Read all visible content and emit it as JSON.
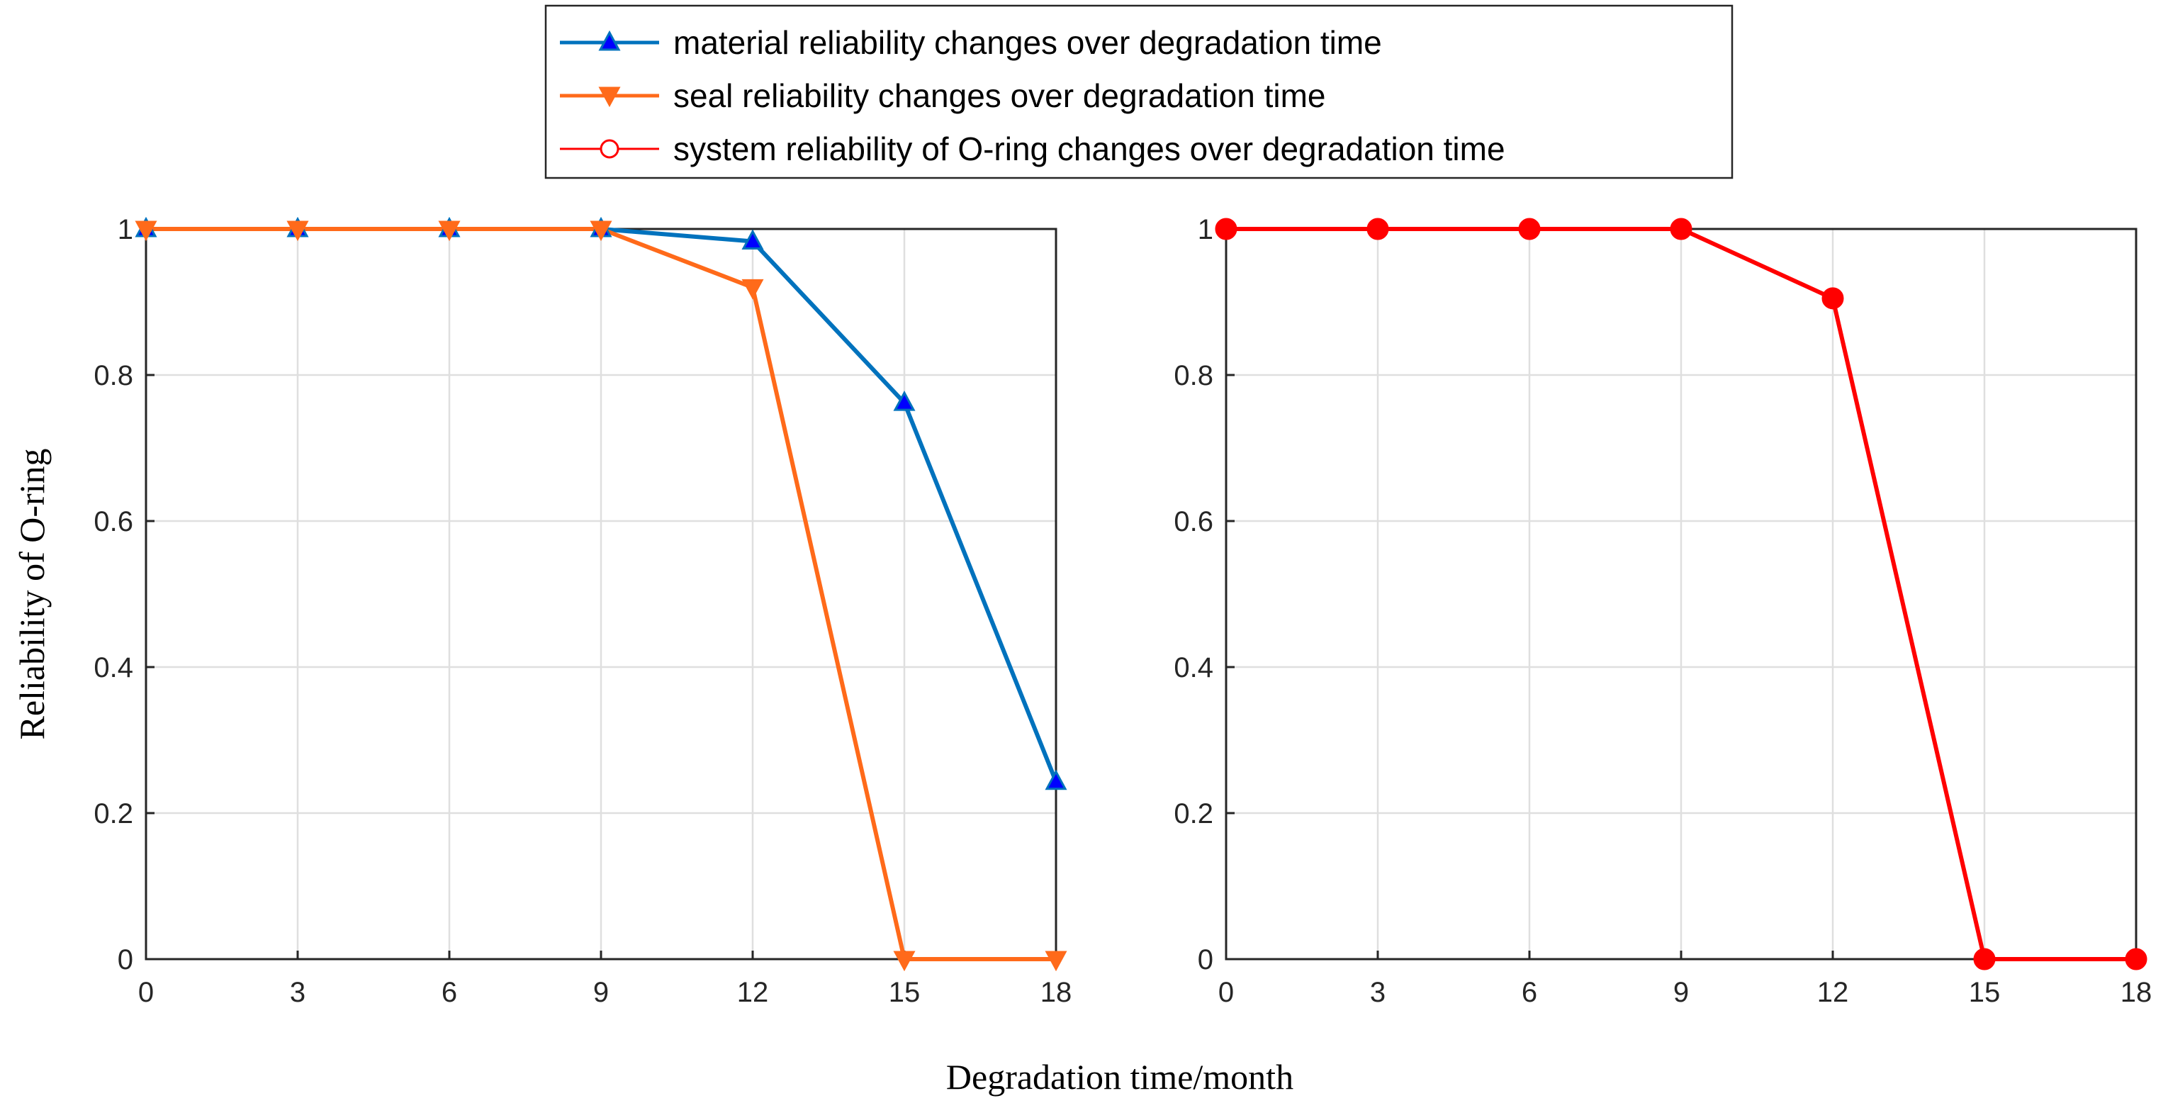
{
  "chart_data": [
    {
      "type": "line",
      "panel": "left",
      "x": [
        0,
        3,
        6,
        9,
        12,
        15,
        18
      ],
      "xticks": [
        "0",
        "3",
        "6",
        "9",
        "12",
        "15",
        "18"
      ],
      "yticks": [
        "0",
        "0.2",
        "0.4",
        "0.6",
        "0.8",
        "1"
      ],
      "xlim": [
        0,
        18
      ],
      "ylim": [
        0,
        1
      ],
      "grid": true,
      "ylabel": "Reliability of O-ring",
      "series": [
        {
          "name": "material reliability changes over degradation time",
          "marker": "triangle-up",
          "color": "#0072BD",
          "marker_fill": "#0000FF",
          "values": [
            1,
            1,
            1,
            1,
            0.983,
            0.762,
            0.243
          ]
        },
        {
          "name": "seal reliability changes over degradation time",
          "marker": "triangle-down",
          "color": "#FF6A1A",
          "marker_fill": "#FF6A1A",
          "values": [
            1,
            1,
            1,
            1,
            0.92,
            0,
            0
          ]
        }
      ]
    },
    {
      "type": "line",
      "panel": "right",
      "x": [
        0,
        3,
        6,
        9,
        12,
        15,
        18
      ],
      "xticks": [
        "0",
        "3",
        "6",
        "9",
        "12",
        "15",
        "18"
      ],
      "yticks": [
        "0",
        "0.2",
        "0.4",
        "0.6",
        "0.8",
        "1"
      ],
      "xlim": [
        0,
        18
      ],
      "ylim": [
        0,
        1
      ],
      "grid": true,
      "series": [
        {
          "name": "system reliability of O-ring changes over degradation time",
          "marker": "circle",
          "color": "#FF0000",
          "marker_fill": "#FF0000",
          "values": [
            1,
            1,
            1,
            1,
            0.905,
            0,
            0
          ]
        }
      ]
    }
  ],
  "legend": {
    "placement": "top-center",
    "entries": [
      "material reliability changes over degradation time",
      "seal reliability changes over degradation time",
      "system reliability of O-ring changes over degradation time"
    ]
  },
  "xlabel": "Degradation time/month"
}
